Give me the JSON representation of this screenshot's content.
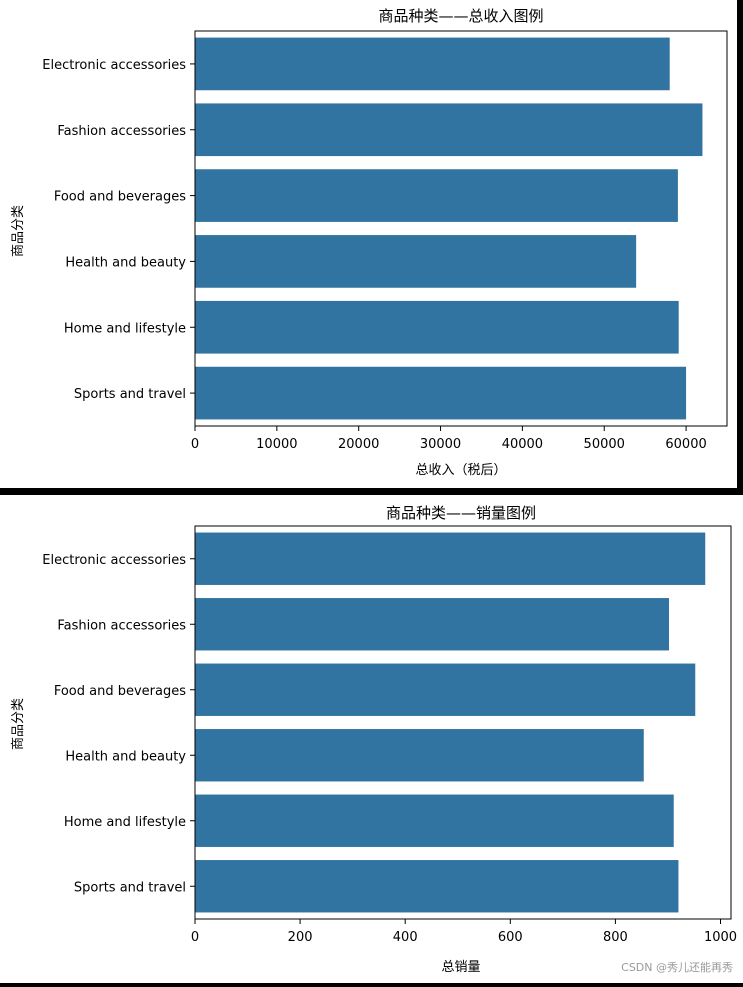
{
  "colors": {
    "bar": "#3274a1",
    "frame": "#000000"
  },
  "chart_data": [
    {
      "type": "bar",
      "orientation": "horizontal",
      "title": "商品种类——总收入图例",
      "xlabel": "总收入（税后）",
      "ylabel": "商品分类",
      "categories": [
        "Electronic accessories",
        "Fashion accessories",
        "Food and beverages",
        "Health and beauty",
        "Home and lifestyle",
        "Sports and travel"
      ],
      "values": [
        58000,
        62000,
        59000,
        53900,
        59100,
        60000
      ],
      "xlim": [
        0,
        65000
      ],
      "xticks": [
        "0",
        "10000",
        "20000",
        "30000",
        "40000",
        "50000",
        "60000"
      ],
      "grid": false,
      "legend": "none"
    },
    {
      "type": "bar",
      "orientation": "horizontal",
      "title": "商品种类——销量图例",
      "xlabel": "总销量",
      "ylabel": "商品分类",
      "categories": [
        "Electronic accessories",
        "Fashion accessories",
        "Food and beverages",
        "Health and beauty",
        "Home and lifestyle",
        "Sports and travel"
      ],
      "values": [
        971,
        902,
        952,
        854,
        911,
        920
      ],
      "xlim": [
        0,
        1020
      ],
      "xticks": [
        "0",
        "200",
        "400",
        "600",
        "800",
        "1000"
      ],
      "grid": false,
      "legend": "none"
    }
  ],
  "watermark": "CSDN @秀儿还能再秀"
}
